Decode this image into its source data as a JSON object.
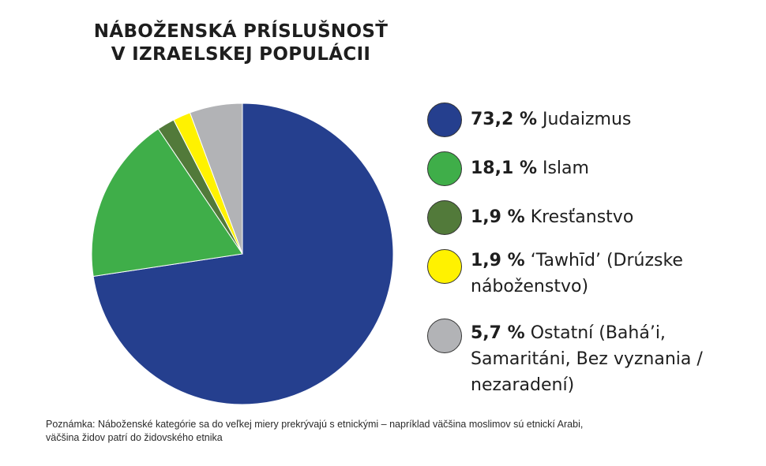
{
  "title": {
    "line1": "NÁBOŽENSKÁ PRÍSLUŠNOSŤ",
    "line2": "V IZRAELSKEJ POPULÁCII"
  },
  "chart_data": {
    "type": "pie",
    "title": "NÁBOŽENSKÁ PRÍSLUŠNOSŤ V IZRAELSKEJ POPULÁCII",
    "start": "top, clockwise",
    "slices": [
      {
        "value": 73.2,
        "value_label": "73,2 %",
        "name": "Judaizmus",
        "color": "#253f8e"
      },
      {
        "value": 18.1,
        "value_label": "18,1 %",
        "name": "Islam",
        "color": "#3fae49"
      },
      {
        "value": 1.9,
        "value_label": "1,9 %",
        "name": "Kresťanstvo",
        "color": "#527a3a"
      },
      {
        "value": 1.9,
        "value_label": "1,9 %",
        "name": "‘Tawhīd’ (Drúzske náboženstvo)",
        "color": "#fff200"
      },
      {
        "value": 5.7,
        "value_label": "5,7 %",
        "name": "Ostatní (Bahá’i, Samaritáni, Bez vyznania / nezaradení)",
        "color": "#b2b3b6"
      }
    ],
    "legend_position": "right"
  },
  "note": {
    "line1": "Poznámka: Náboženské kategórie sa do veľkej miery prekrývajú s etnickými – napríklad väčšina moslimov sú etnickí Arabi,",
    "line2": "väčšina židov patrí do židovského etnika"
  }
}
